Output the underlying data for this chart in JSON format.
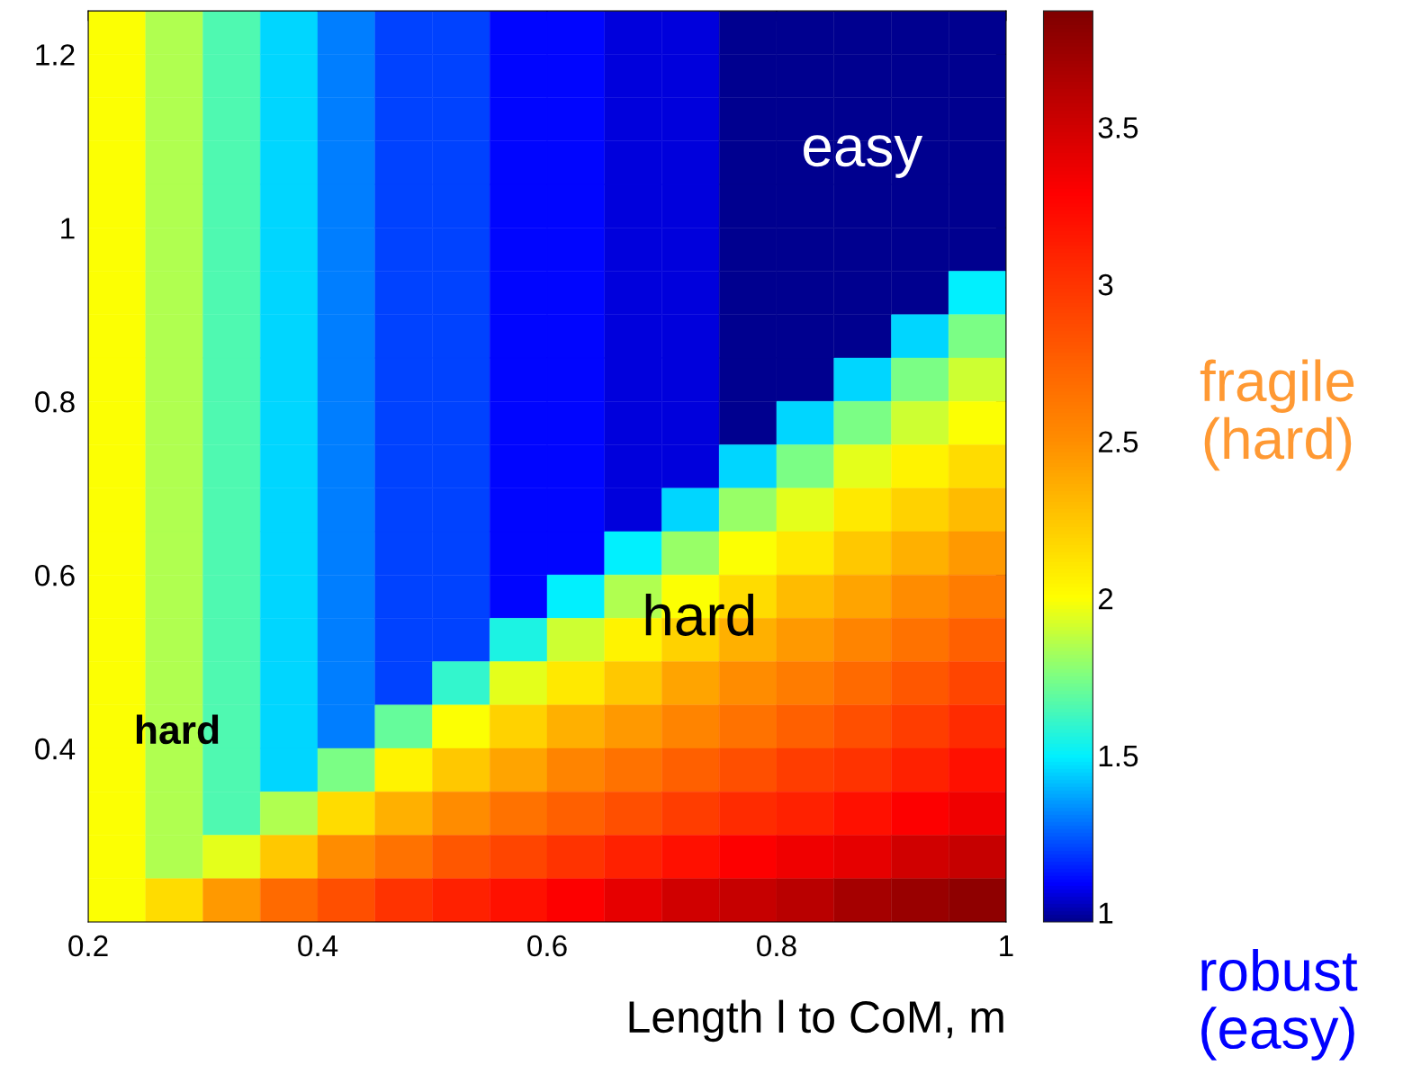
{
  "chart_data": {
    "type": "heatmap",
    "xlabel": "Length l to CoM, m",
    "x": [
      0.225,
      0.275,
      0.325,
      0.375,
      0.425,
      0.475,
      0.525,
      0.575,
      0.625,
      0.675,
      0.725,
      0.775,
      0.825,
      0.875,
      0.925,
      0.975
    ],
    "y": [
      1.225,
      1.175,
      1.125,
      1.075,
      1.025,
      0.975,
      0.925,
      0.875,
      0.825,
      0.775,
      0.725,
      0.675,
      0.625,
      0.575,
      0.525,
      0.475,
      0.425,
      0.375,
      0.325,
      0.275,
      0.225
    ],
    "xlim": [
      0.2,
      1
    ],
    "ylim": [
      0.2,
      1.25
    ],
    "xticks": [
      0.2,
      0.4,
      0.6,
      0.8,
      1
    ],
    "yticks": [
      0.4,
      0.6,
      0.8,
      1,
      1.2
    ],
    "clim": [
      0.97,
      3.87
    ],
    "cticks": [
      1,
      1.5,
      2,
      2.5,
      3,
      3.5
    ],
    "cells": [
      [
        2.0,
        1.85,
        1.65,
        1.45,
        1.3,
        1.2,
        1.2,
        1.1,
        1.1,
        1.05,
        1.05,
        0.98,
        0.98,
        0.98,
        0.98,
        0.98
      ],
      [
        2.0,
        1.85,
        1.65,
        1.45,
        1.3,
        1.2,
        1.2,
        1.1,
        1.1,
        1.05,
        1.05,
        0.98,
        0.98,
        0.98,
        0.98,
        0.98
      ],
      [
        2.0,
        1.85,
        1.65,
        1.45,
        1.3,
        1.2,
        1.2,
        1.1,
        1.1,
        1.05,
        1.05,
        0.98,
        0.98,
        0.98,
        0.98,
        0.98
      ],
      [
        2.0,
        1.85,
        1.65,
        1.45,
        1.3,
        1.2,
        1.2,
        1.1,
        1.1,
        1.05,
        1.05,
        0.98,
        0.98,
        0.98,
        0.98,
        0.98
      ],
      [
        2.0,
        1.85,
        1.65,
        1.45,
        1.3,
        1.2,
        1.2,
        1.1,
        1.1,
        1.05,
        1.05,
        0.98,
        0.98,
        0.98,
        0.98,
        0.98
      ],
      [
        2.0,
        1.85,
        1.65,
        1.45,
        1.3,
        1.2,
        1.2,
        1.1,
        1.1,
        1.05,
        1.05,
        0.98,
        0.98,
        0.98,
        0.98,
        0.98
      ],
      [
        2.0,
        1.85,
        1.65,
        1.45,
        1.3,
        1.2,
        1.2,
        1.1,
        1.1,
        1.05,
        1.05,
        0.98,
        0.98,
        0.98,
        0.98,
        1.5
      ],
      [
        2.0,
        1.85,
        1.65,
        1.45,
        1.3,
        1.2,
        1.2,
        1.1,
        1.1,
        1.05,
        1.05,
        0.98,
        0.98,
        0.98,
        1.45,
        1.75
      ],
      [
        2.0,
        1.85,
        1.65,
        1.45,
        1.3,
        1.2,
        1.2,
        1.1,
        1.1,
        1.05,
        1.05,
        0.98,
        0.98,
        1.45,
        1.75,
        1.9
      ],
      [
        2.0,
        1.85,
        1.65,
        1.45,
        1.3,
        1.2,
        1.2,
        1.1,
        1.1,
        1.05,
        1.05,
        0.98,
        1.45,
        1.75,
        1.9,
        2.0
      ],
      [
        2.0,
        1.85,
        1.65,
        1.45,
        1.3,
        1.2,
        1.2,
        1.1,
        1.1,
        1.05,
        1.05,
        1.45,
        1.75,
        1.95,
        2.05,
        2.15
      ],
      [
        2.0,
        1.85,
        1.65,
        1.45,
        1.3,
        1.2,
        1.2,
        1.1,
        1.1,
        1.05,
        1.45,
        1.8,
        1.95,
        2.1,
        2.2,
        2.3
      ],
      [
        2.0,
        1.85,
        1.65,
        1.45,
        1.3,
        1.2,
        1.2,
        1.1,
        1.1,
        1.5,
        1.8,
        2.0,
        2.1,
        2.25,
        2.35,
        2.45
      ],
      [
        2.0,
        1.85,
        1.65,
        1.45,
        1.3,
        1.2,
        1.2,
        1.1,
        1.5,
        1.85,
        2.0,
        2.15,
        2.3,
        2.4,
        2.5,
        2.6
      ],
      [
        2.0,
        1.85,
        1.65,
        1.45,
        1.3,
        1.2,
        1.2,
        1.55,
        1.9,
        2.05,
        2.2,
        2.35,
        2.45,
        2.55,
        2.65,
        2.75
      ],
      [
        2.0,
        1.85,
        1.65,
        1.45,
        1.3,
        1.2,
        1.6,
        1.95,
        2.1,
        2.25,
        2.4,
        2.5,
        2.6,
        2.7,
        2.8,
        2.9
      ],
      [
        2.0,
        1.85,
        1.65,
        1.45,
        1.3,
        1.7,
        2.0,
        2.2,
        2.35,
        2.45,
        2.55,
        2.65,
        2.75,
        2.85,
        2.95,
        3.05
      ],
      [
        2.0,
        1.85,
        1.65,
        1.45,
        1.75,
        2.05,
        2.25,
        2.4,
        2.55,
        2.65,
        2.75,
        2.85,
        2.95,
        3.0,
        3.1,
        3.2
      ],
      [
        2.0,
        1.85,
        1.65,
        1.85,
        2.15,
        2.35,
        2.5,
        2.65,
        2.75,
        2.85,
        2.95,
        3.05,
        3.1,
        3.2,
        3.3,
        3.35
      ],
      [
        2.0,
        1.85,
        1.95,
        2.25,
        2.5,
        2.65,
        2.8,
        2.9,
        3.0,
        3.1,
        3.2,
        3.3,
        3.35,
        3.4,
        3.5,
        3.55
      ],
      [
        2.0,
        2.15,
        2.45,
        2.7,
        2.85,
        3.0,
        3.1,
        3.2,
        3.3,
        3.4,
        3.5,
        3.55,
        3.6,
        3.7,
        3.75,
        3.8
      ]
    ],
    "annotations": [
      "easy",
      "hard",
      "hard",
      "fragile\n(hard)",
      "robust\n(easy)"
    ]
  }
}
